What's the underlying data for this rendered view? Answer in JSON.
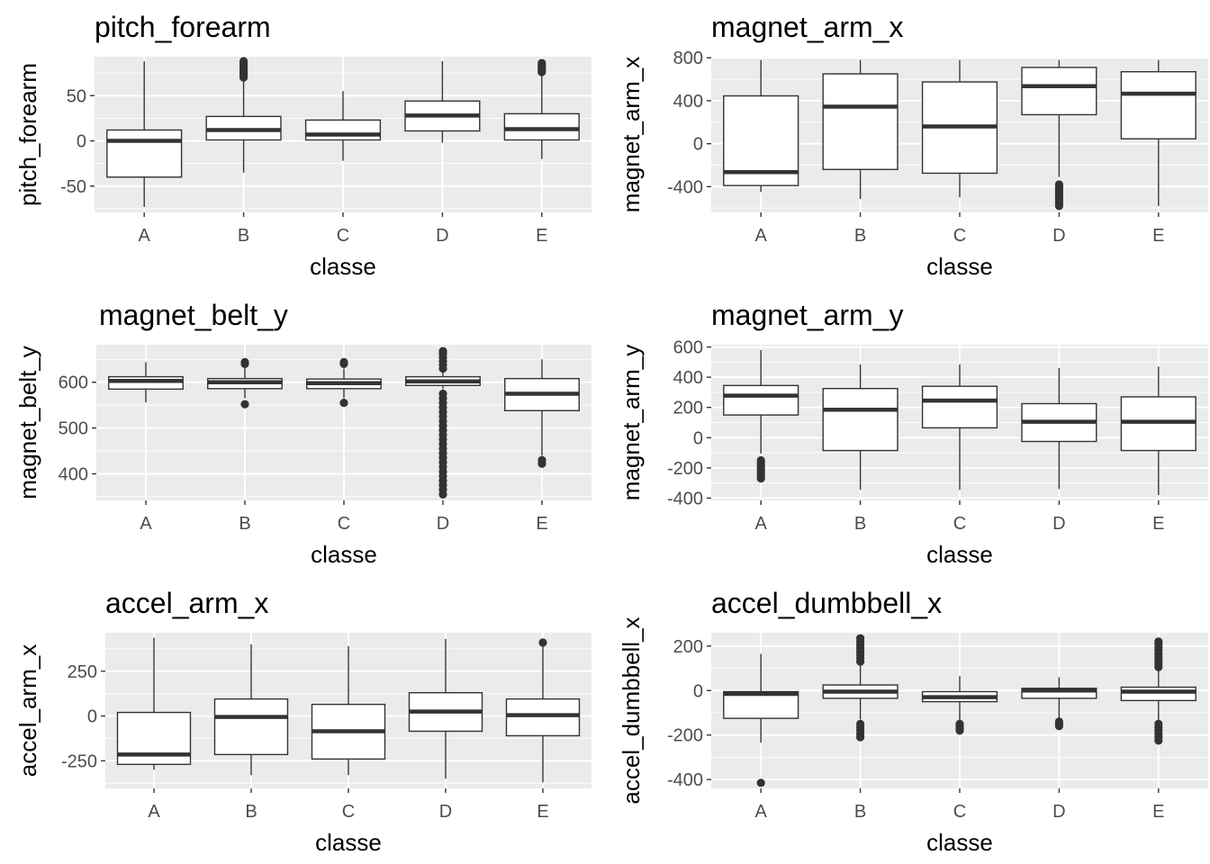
{
  "chart_data": [
    {
      "type": "box",
      "title": "pitch_forearm",
      "xlabel": "classe",
      "ylabel": "pitch_forearm",
      "categories": [
        "A",
        "B",
        "C",
        "D",
        "E"
      ],
      "ylim": [
        -79,
        93
      ],
      "yticks": [
        -50,
        0,
        50
      ],
      "ytick_labels": [
        "-50",
        "0",
        "50"
      ],
      "boxes": [
        {
          "category": "A",
          "whisker_low": -73,
          "q1": -40,
          "median": 0,
          "q3": 12,
          "whisker_high": 88,
          "outliers": []
        },
        {
          "category": "B",
          "whisker_low": -35,
          "q1": 1,
          "median": 12,
          "q3": 27,
          "whisker_high": 68,
          "outliers": [
            70,
            72,
            74,
            76,
            78,
            80,
            82,
            84,
            86,
            88
          ]
        },
        {
          "category": "C",
          "whisker_low": -22,
          "q1": 1,
          "median": 7,
          "q3": 23,
          "whisker_high": 55,
          "outliers": []
        },
        {
          "category": "D",
          "whisker_low": -2,
          "q1": 11,
          "median": 28,
          "q3": 44,
          "whisker_high": 88,
          "outliers": []
        },
        {
          "category": "E",
          "whisker_low": -20,
          "q1": 1,
          "median": 13,
          "q3": 30,
          "whisker_high": 74,
          "outliers": [
            76,
            78,
            80,
            82,
            84,
            86
          ]
        }
      ]
    },
    {
      "type": "box",
      "title": "magnet_arm_x",
      "xlabel": "classe",
      "ylabel": "magnet_arm_x",
      "categories": [
        "A",
        "B",
        "C",
        "D",
        "E"
      ],
      "ylim": [
        -640,
        810
      ],
      "yticks": [
        -400,
        0,
        400,
        800
      ],
      "ytick_labels": [
        "-400",
        "0",
        "400",
        "800"
      ],
      "boxes": [
        {
          "category": "A",
          "whisker_low": -450,
          "q1": -390,
          "median": -265,
          "q3": 445,
          "whisker_high": 780,
          "outliers": []
        },
        {
          "category": "B",
          "whisker_low": -515,
          "q1": -240,
          "median": 345,
          "q3": 650,
          "whisker_high": 780,
          "outliers": []
        },
        {
          "category": "C",
          "whisker_low": -500,
          "q1": -275,
          "median": 160,
          "q3": 575,
          "whisker_high": 780,
          "outliers": []
        },
        {
          "category": "D",
          "whisker_low": -310,
          "q1": 270,
          "median": 535,
          "q3": 710,
          "whisker_high": 780,
          "outliers": [
            -380,
            -400,
            -420,
            -440,
            -460,
            -480,
            -500,
            -520,
            -540,
            -560,
            -580
          ]
        },
        {
          "category": "E",
          "whisker_low": -580,
          "q1": 45,
          "median": 465,
          "q3": 670,
          "whisker_high": 780,
          "outliers": []
        }
      ]
    },
    {
      "type": "box",
      "title": "magnet_belt_y",
      "xlabel": "classe",
      "ylabel": "magnet_belt_y",
      "categories": [
        "A",
        "B",
        "C",
        "D",
        "E"
      ],
      "ylim": [
        342,
        682
      ],
      "yticks": [
        400,
        500,
        600
      ],
      "ytick_labels": [
        "400",
        "500",
        "600"
      ],
      "boxes": [
        {
          "category": "A",
          "whisker_low": 556,
          "q1": 585,
          "median": 603,
          "q3": 612,
          "whisker_high": 644,
          "outliers": []
        },
        {
          "category": "B",
          "whisker_low": 565,
          "q1": 586,
          "median": 600,
          "q3": 608,
          "whisker_high": 632,
          "outliers": [
            552,
            640,
            644
          ]
        },
        {
          "category": "C",
          "whisker_low": 565,
          "q1": 586,
          "median": 598,
          "q3": 607,
          "whisker_high": 630,
          "outliers": [
            555,
            640,
            644
          ]
        },
        {
          "category": "D",
          "whisker_low": 585,
          "q1": 593,
          "median": 602,
          "q3": 612,
          "whisker_high": 625,
          "outliers": [
            355,
            365,
            375,
            385,
            395,
            405,
            415,
            425,
            435,
            445,
            455,
            465,
            475,
            485,
            495,
            505,
            515,
            525,
            535,
            545,
            555,
            565,
            575,
            630,
            638,
            646,
            654,
            662,
            668
          ]
        },
        {
          "category": "E",
          "whisker_low": 440,
          "q1": 538,
          "median": 575,
          "q3": 608,
          "whisker_high": 650,
          "outliers": [
            422,
            430
          ]
        }
      ]
    },
    {
      "type": "box",
      "title": "magnet_arm_y",
      "xlabel": "classe",
      "ylabel": "magnet_arm_y",
      "categories": [
        "A",
        "B",
        "C",
        "D",
        "E"
      ],
      "ylim": [
        -415,
        615
      ],
      "yticks": [
        -400,
        -200,
        0,
        200,
        400,
        600
      ],
      "ytick_labels": [
        "-400",
        "-200",
        "0",
        "200",
        "400",
        "600"
      ],
      "boxes": [
        {
          "category": "A",
          "whisker_low": -105,
          "q1": 150,
          "median": 278,
          "q3": 345,
          "whisker_high": 580,
          "outliers": [
            -150,
            -165,
            -180,
            -195,
            -210,
            -225,
            -240,
            -255,
            -270
          ]
        },
        {
          "category": "B",
          "whisker_low": -345,
          "q1": -85,
          "median": 185,
          "q3": 325,
          "whisker_high": 485,
          "outliers": []
        },
        {
          "category": "C",
          "whisker_low": -345,
          "q1": 65,
          "median": 245,
          "q3": 340,
          "whisker_high": 485,
          "outliers": []
        },
        {
          "category": "D",
          "whisker_low": -340,
          "q1": -25,
          "median": 105,
          "q3": 225,
          "whisker_high": 460,
          "outliers": []
        },
        {
          "category": "E",
          "whisker_low": -380,
          "q1": -85,
          "median": 105,
          "q3": 270,
          "whisker_high": 470,
          "outliers": []
        }
      ]
    },
    {
      "type": "box",
      "title": "accel_arm_x",
      "xlabel": "classe",
      "ylabel": "accel_arm_x",
      "categories": [
        "A",
        "B",
        "C",
        "D",
        "E"
      ],
      "ylim": [
        -404,
        465
      ],
      "yticks": [
        -250,
        0,
        250
      ],
      "ytick_labels": [
        "-250",
        "0",
        "250"
      ],
      "boxes": [
        {
          "category": "A",
          "whisker_low": -300,
          "q1": -270,
          "median": -215,
          "q3": 20,
          "whisker_high": 437,
          "outliers": []
        },
        {
          "category": "B",
          "whisker_low": -330,
          "q1": -215,
          "median": -5,
          "q3": 95,
          "whisker_high": 400,
          "outliers": []
        },
        {
          "category": "C",
          "whisker_low": -330,
          "q1": -240,
          "median": -85,
          "q3": 65,
          "whisker_high": 390,
          "outliers": []
        },
        {
          "category": "D",
          "whisker_low": -350,
          "q1": -85,
          "median": 25,
          "q3": 130,
          "whisker_high": 430,
          "outliers": []
        },
        {
          "category": "E",
          "whisker_low": -370,
          "q1": -110,
          "median": 5,
          "q3": 95,
          "whisker_high": 395,
          "outliers": [
            410
          ]
        }
      ]
    },
    {
      "type": "box",
      "title": "accel_dumbbell_x",
      "xlabel": "classe",
      "ylabel": "accel_dumbbell_x",
      "categories": [
        "A",
        "B",
        "C",
        "D",
        "E"
      ],
      "ylim": [
        -440,
        260
      ],
      "yticks": [
        -400,
        -200,
        0,
        200
      ],
      "ytick_labels": [
        "-400",
        "-200",
        "0",
        "200"
      ],
      "boxes": [
        {
          "category": "A",
          "whisker_low": -235,
          "q1": -125,
          "median": -15,
          "q3": -5,
          "whisker_high": 165,
          "outliers": [
            -415
          ]
        },
        {
          "category": "B",
          "whisker_low": -130,
          "q1": -35,
          "median": -5,
          "q3": 25,
          "whisker_high": 125,
          "outliers": [
            -150,
            -165,
            -180,
            -195,
            -210,
            130,
            145,
            160,
            175,
            190,
            205,
            220,
            235
          ]
        },
        {
          "category": "C",
          "whisker_low": -140,
          "q1": -50,
          "median": -30,
          "q3": -5,
          "whisker_high": 65,
          "outliers": [
            -150,
            -160,
            -170,
            -180
          ]
        },
        {
          "category": "D",
          "whisker_low": -130,
          "q1": -35,
          "median": 0,
          "q3": 10,
          "whisker_high": 60,
          "outliers": [
            -140,
            -150,
            -160
          ]
        },
        {
          "category": "E",
          "whisker_low": -140,
          "q1": -45,
          "median": -5,
          "q3": 15,
          "whisker_high": 95,
          "outliers": [
            -150,
            -165,
            -180,
            -195,
            -210,
            -225,
            105,
            120,
            135,
            150,
            165,
            180,
            195,
            210,
            220
          ]
        }
      ]
    }
  ]
}
